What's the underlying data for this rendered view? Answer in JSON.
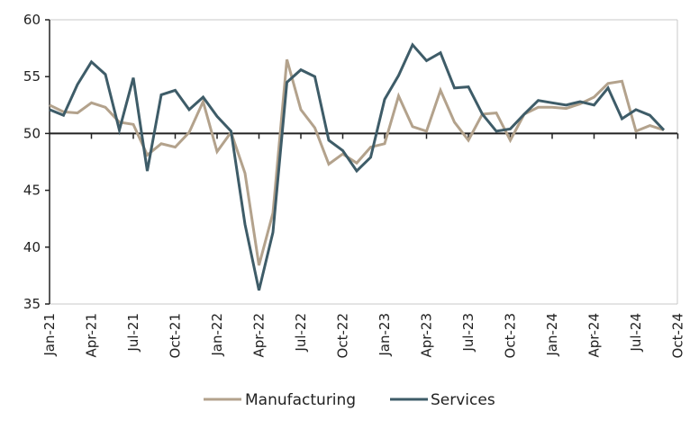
{
  "chart_data": {
    "type": "line",
    "title": "",
    "xlabel": "",
    "ylabel": "",
    "ylim": [
      35,
      60
    ],
    "yticks": [
      "35",
      "40",
      "45",
      "50",
      "55",
      "60"
    ],
    "baseline": 50,
    "grid": false,
    "legend_position": "bottom",
    "x": [
      "Jan-21",
      "Feb-21",
      "Mar-21",
      "Apr-21",
      "May-21",
      "Jun-21",
      "Jul-21",
      "Aug-21",
      "Sep-21",
      "Oct-21",
      "Nov-21",
      "Dec-21",
      "Jan-22",
      "Feb-22",
      "Mar-22",
      "Apr-22",
      "May-22",
      "Jun-22",
      "Jul-22",
      "Aug-22",
      "Sep-22",
      "Oct-22",
      "Nov-22",
      "Dec-22",
      "Jan-23",
      "Feb-23",
      "Mar-23",
      "Apr-23",
      "May-23",
      "Jun-23",
      "Jul-23",
      "Aug-23",
      "Sep-23",
      "Oct-23",
      "Nov-23",
      "Dec-23",
      "Jan-24",
      "Feb-24",
      "Mar-24",
      "Apr-24",
      "May-24",
      "Jun-24",
      "Jul-24",
      "Aug-24",
      "Sep-24"
    ],
    "xtick_labels": [
      "Jan-21",
      "Apr-21",
      "Jul-21",
      "Oct-21",
      "Jan-22",
      "Apr-22",
      "Jul-22",
      "Oct-22",
      "Jan-23",
      "Apr-23",
      "Jul-23",
      "Oct-23",
      "Jan-24",
      "Apr-24",
      "Jul-24",
      "Oct-24"
    ],
    "series": [
      {
        "name": "Manufacturing",
        "color": "#b3a28c",
        "values": [
          52.5,
          51.9,
          51.8,
          52.7,
          52.3,
          51.0,
          50.8,
          48.1,
          49.1,
          48.8,
          50.1,
          52.8,
          48.4,
          50.1,
          46.5,
          38.4,
          43.0,
          56.5,
          52.1,
          50.5,
          47.3,
          48.2,
          47.4,
          48.8,
          49.1,
          53.3,
          50.6,
          50.2,
          53.8,
          51.0,
          49.4,
          51.7,
          51.8,
          49.4,
          51.7,
          52.3,
          52.3,
          52.2,
          52.6,
          53.2,
          54.4,
          54.6,
          50.2,
          50.7,
          50.3
        ]
      },
      {
        "name": "Services",
        "color": "#3e5c68",
        "values": [
          52.1,
          51.6,
          54.3,
          56.3,
          55.2,
          50.3,
          54.9,
          46.7,
          53.4,
          53.8,
          52.1,
          53.2,
          51.5,
          50.2,
          42.0,
          36.2,
          41.3,
          54.5,
          55.6,
          55.0,
          49.4,
          48.5,
          46.7,
          47.9,
          53.0,
          55.1,
          57.8,
          56.4,
          57.1,
          54.0,
          54.1,
          51.7,
          50.2,
          50.4,
          51.7,
          52.9,
          52.7,
          52.5,
          52.8,
          52.5,
          54.0,
          51.3,
          52.1,
          51.6,
          50.3
        ]
      }
    ]
  }
}
